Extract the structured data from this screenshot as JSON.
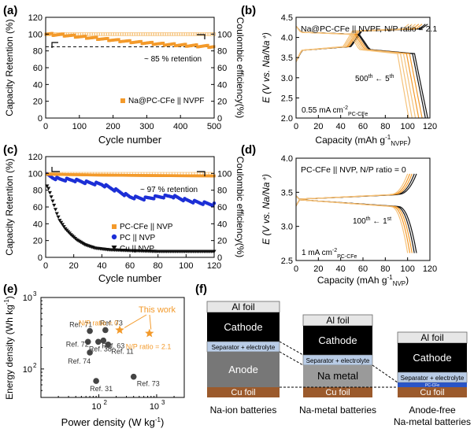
{
  "colors": {
    "orange": "#f39a2b",
    "light_orange": "#f5c27a",
    "blue": "#1c2fd6",
    "black": "#111111",
    "gray_dot": "#444444",
    "al": "#e6e6e6",
    "cathode": "#000000",
    "separator": "#b9cce6",
    "anode": "#777777",
    "na_metal": "#9a9a9a",
    "cu": "#9b5a2c",
    "pcfe": "#2a55c6"
  },
  "panel_labels": {
    "a": "(a)",
    "b": "(b)",
    "c": "(c)",
    "d": "(d)",
    "e": "(e)",
    "f": "(f)"
  },
  "chart_data": [
    {
      "panel": "a",
      "type": "scatter",
      "xlabel": "Cycle number",
      "ylabel": "Capacity Retention (%)",
      "y2label": "Coulombic efficiency(%)",
      "xlim": [
        0,
        500
      ],
      "ylim": [
        0,
        120
      ],
      "y2lim": [
        0,
        120
      ],
      "xticks": [
        "0",
        "100",
        "200",
        "300",
        "400",
        "500"
      ],
      "yticks": [
        "0",
        "20",
        "40",
        "60",
        "80",
        "100",
        "120"
      ],
      "y2ticks": [
        "0",
        "20",
        "40",
        "60",
        "80",
        "100"
      ],
      "reference_line": {
        "y": 85,
        "label": "~ 85 % retention"
      },
      "legend": "Na@PC-CFe || NVPF",
      "series": [
        {
          "name": "Na@PC-CFe || NVPF",
          "kind": "retention",
          "x": [
            1,
            50,
            100,
            150,
            200,
            250,
            300,
            350,
            400,
            450,
            500
          ],
          "y": [
            100,
            99,
            97,
            95,
            93,
            91,
            89.5,
            88,
            87,
            86,
            85
          ]
        },
        {
          "kind": "coulombic_efficiency",
          "x": [
            1,
            100,
            200,
            300,
            400,
            500
          ],
          "y": [
            99.9,
            99.9,
            99.9,
            99.9,
            99.9,
            99.9
          ]
        }
      ]
    },
    {
      "panel": "b",
      "type": "line",
      "title": "Na@PC-CFe || NVPF, N/P ratio = 2.1",
      "xlabel": "Capacity (mAh g",
      "xlabel_sup": "-1",
      "xlabel_sub": "NVPF",
      "xlabel_end": ")",
      "ylabel": "E (V vs. Na/Na⁺)",
      "xlim": [
        0,
        120
      ],
      "ylim": [
        2.0,
        4.5
      ],
      "xticks": [
        "0",
        "20",
        "40",
        "60",
        "80",
        "100",
        "120"
      ],
      "yticks": [
        "2.0",
        "2.5",
        "3.0",
        "3.5",
        "4.0",
        "4.5"
      ],
      "annotation": {
        "left": "500",
        "left_sup": "th",
        "arrow": " ← ",
        "right": "5",
        "right_sup": "th"
      },
      "rate": {
        "value": "0.55 mA cm",
        "sup": "-2",
        "sub": "PC-CFe"
      },
      "curves": [
        {
          "final_capacity": 118,
          "color": "black"
        },
        {
          "final_capacity": 116,
          "color": "black"
        },
        {
          "final_capacity": 113,
          "color": "orange"
        },
        {
          "final_capacity": 110,
          "color": "orange"
        },
        {
          "final_capacity": 107,
          "color": "light_orange"
        },
        {
          "final_capacity": 104,
          "color": "light_orange"
        },
        {
          "final_capacity": 101,
          "color": "light_orange"
        }
      ]
    },
    {
      "panel": "c",
      "type": "scatter",
      "xlabel": "Cycle number",
      "ylabel": "Capacity Retention (%)",
      "y2label": "Coulombic efficiency(%)",
      "xlim": [
        0,
        120
      ],
      "ylim": [
        0,
        120
      ],
      "xticks": [
        "0",
        "20",
        "40",
        "60",
        "80",
        "100",
        "120"
      ],
      "yticks": [
        "0",
        "20",
        "40",
        "60",
        "80",
        "100",
        "120"
      ],
      "y2ticks": [
        "0",
        "20",
        "40",
        "60",
        "80",
        "100"
      ],
      "annotation": "~ 97 % retention",
      "series": [
        {
          "name": "PC-CFe || NVP",
          "x": [
            1,
            20,
            40,
            60,
            80,
            100,
            120
          ],
          "y": [
            99,
            98.5,
            98,
            97.7,
            97.4,
            97.2,
            97
          ]
        },
        {
          "name": "PC || NVP",
          "x": [
            1,
            5,
            10,
            20,
            30,
            40,
            50,
            60,
            70,
            80,
            90,
            100,
            110,
            120
          ],
          "y": [
            98,
            95,
            93,
            92,
            89,
            87,
            80,
            72,
            70,
            72,
            73,
            68,
            65,
            63
          ]
        },
        {
          "name": "Cu || NVP",
          "x": [
            1,
            2,
            4,
            6,
            8,
            10,
            14,
            18,
            22,
            28,
            35,
            45,
            60,
            80,
            100,
            120
          ],
          "y": [
            85,
            82,
            72,
            62,
            52,
            44,
            34,
            27,
            21,
            15,
            11,
            9,
            8,
            7,
            7,
            7
          ]
        }
      ]
    },
    {
      "panel": "d",
      "type": "line",
      "title": "PC-CFe || NVP, N/P ratio = 0",
      "xlabel": "Capacity (mAh g",
      "xlabel_sup": "-1",
      "xlabel_sub": "NVP",
      "xlabel_end": ")",
      "ylabel": "E (V vs. Na/Na⁺)",
      "xlim": [
        0,
        120
      ],
      "ylim": [
        2.5,
        4.0
      ],
      "xticks": [
        "0",
        "20",
        "40",
        "60",
        "80",
        "100",
        "120"
      ],
      "yticks": [
        "2.5",
        "3.0",
        "3.5",
        "4.0"
      ],
      "annotation": {
        "left": "100",
        "left_sup": "th",
        "arrow": " ← ",
        "right": "1",
        "right_sup": "st"
      },
      "rate": {
        "value": "1 mA cm",
        "sup": "-2",
        "sub": "PC-CFe"
      },
      "curves": [
        {
          "final_capacity": 108,
          "color": "black"
        },
        {
          "final_capacity": 106,
          "color": "black"
        },
        {
          "final_capacity": 104,
          "color": "orange"
        },
        {
          "final_capacity": 102,
          "color": "orange"
        },
        {
          "final_capacity": 100,
          "color": "light_orange"
        }
      ]
    },
    {
      "panel": "e",
      "type": "scatter",
      "xlabel": "Power density (W kg",
      "xlabel_sup": "-1",
      "xlabel_end": ")",
      "ylabel": "Energy density (Wh kg",
      "ylabel_sup": "-1",
      "ylabel_end": ")",
      "x_scale": "log",
      "y_scale": "log",
      "xlim": [
        10,
        3000
      ],
      "ylim": [
        40,
        1000
      ],
      "xticks": [
        {
          "base": "10",
          "exp": "2",
          "value": 100
        },
        {
          "base": "10",
          "exp": "3",
          "value": 1000
        }
      ],
      "yticks": [
        {
          "base": "10",
          "exp": "2",
          "value": 100
        },
        {
          "base": "10",
          "exp": "3",
          "value": 1000
        }
      ],
      "points": [
        {
          "label": "Ref. 71",
          "x": 70,
          "y": 340
        },
        {
          "label": "Ref. 73",
          "x": 130,
          "y": 350
        },
        {
          "label": "Ref. 72",
          "x": 65,
          "y": 240
        },
        {
          "label": "Ref. 38",
          "x": 98,
          "y": 240
        },
        {
          "label": "Ref. 63",
          "x": 120,
          "y": 250
        },
        {
          "label": "Ref. 11",
          "x": 145,
          "y": 220
        },
        {
          "label": "Ref. 74",
          "x": 70,
          "y": 170
        },
        {
          "label": "Ref. 31",
          "x": 90,
          "y": 68
        },
        {
          "label": "Ref. 73",
          "x": 400,
          "y": 78
        }
      ],
      "this_work": {
        "label": "This work",
        "points": [
          {
            "label": "N/P ratio = 0",
            "x": 230,
            "y": 350
          },
          {
            "label": "N/P ratio = 2.1",
            "x": 750,
            "y": 315
          }
        ]
      }
    }
  ],
  "diagram_f": {
    "columns": [
      {
        "caption_1": "Na-ion batteries",
        "caption_2": "",
        "layers": [
          "Al foil",
          "Cathode",
          "Separator + electrolyte",
          "Anode",
          "Cu foil"
        ]
      },
      {
        "caption_1": "Na-metal batteries",
        "caption_2": "",
        "layers": [
          "Al foil",
          "Cathode",
          "Separator + electrolyte",
          "Na metal",
          "Cu foil"
        ]
      },
      {
        "caption_1": "Anode-free",
        "caption_2": "Na-metal batteries",
        "layers": [
          "Al foil",
          "Cathode",
          "Separator + electrolyte",
          "PC-CFe",
          "Cu foil"
        ]
      }
    ]
  }
}
